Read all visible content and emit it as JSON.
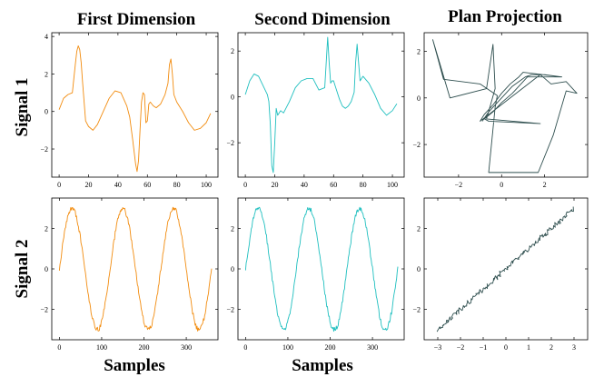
{
  "figure": {
    "column_titles": [
      "First Dimension",
      "Second Dimension",
      "Plan Projection"
    ],
    "row_titles": [
      "Signal 1",
      "Signal 2"
    ],
    "x_labels": [
      "Samples",
      "Samples",
      ""
    ]
  },
  "colors": {
    "first_dimension": "#f28c0f",
    "second_dimension": "#1fbfbf",
    "plan_projection": "#2f4f4f",
    "frame": "#000000"
  },
  "chart_data": [
    {
      "id": "signal1-first",
      "type": "line",
      "title": "First Dimension",
      "row": "Signal 1",
      "xlabel": "",
      "xlim": [
        -5,
        108
      ],
      "ylim": [
        -3.5,
        4.2
      ],
      "xticks": [
        0,
        20,
        40,
        60,
        80,
        100
      ],
      "yticks": [
        -2,
        0,
        2,
        4
      ],
      "color": "#f28c0f",
      "series": [
        {
          "x": [
            0,
            3,
            6,
            9,
            11,
            12,
            13,
            14,
            15,
            16,
            18,
            20,
            23,
            26,
            30,
            34,
            38,
            42,
            46,
            48,
            50,
            52,
            53,
            54,
            55,
            56,
            57,
            58,
            59,
            60,
            61,
            62,
            64,
            66,
            69,
            72,
            74,
            75,
            76,
            77,
            78,
            79,
            80,
            84,
            88,
            92,
            96,
            100,
            103
          ],
          "y": [
            0.1,
            0.7,
            0.9,
            1.0,
            2.5,
            3.2,
            3.5,
            3.3,
            2.6,
            1.5,
            -0.5,
            -0.8,
            -1.0,
            -0.7,
            0.0,
            0.7,
            1.1,
            1.0,
            0.3,
            -0.3,
            -1.5,
            -2.8,
            -3.2,
            -2.6,
            -1.0,
            0.5,
            1.0,
            0.9,
            -0.6,
            -0.5,
            0.4,
            0.5,
            0.3,
            0.2,
            0.4,
            0.9,
            1.5,
            2.5,
            2.8,
            2.0,
            0.9,
            0.7,
            0.5,
            0.0,
            -0.6,
            -1.0,
            -0.9,
            -0.6,
            -0.1
          ]
        }
      ]
    },
    {
      "id": "signal1-second",
      "type": "line",
      "title": "Second Dimension",
      "row": "Signal 1",
      "xlabel": "",
      "xlim": [
        -5,
        108
      ],
      "ylim": [
        -3.5,
        2.8
      ],
      "xticks": [
        0,
        20,
        40,
        60,
        80,
        100
      ],
      "yticks": [
        -2,
        0,
        2
      ],
      "color": "#1fbfbf",
      "series": [
        {
          "x": [
            0,
            3,
            6,
            9,
            12,
            15,
            16,
            17,
            18,
            19,
            20,
            21,
            22,
            24,
            26,
            30,
            34,
            38,
            42,
            46,
            50,
            54,
            55,
            56,
            57,
            58,
            59,
            60,
            62,
            64,
            66,
            68,
            70,
            72,
            74,
            75,
            76,
            77,
            78,
            80,
            84,
            88,
            92,
            96,
            100,
            103
          ],
          "y": [
            0.1,
            0.7,
            1.0,
            0.9,
            0.5,
            0.1,
            -0.2,
            -1.2,
            -3.0,
            -3.3,
            -2.0,
            -0.5,
            -0.8,
            -0.6,
            -0.7,
            -0.2,
            0.4,
            0.7,
            0.8,
            0.8,
            0.3,
            0.4,
            1.5,
            2.6,
            1.5,
            0.6,
            0.7,
            0.7,
            0.3,
            -0.1,
            -0.4,
            -0.5,
            -0.4,
            -0.2,
            0.2,
            1.5,
            2.3,
            1.5,
            0.7,
            0.9,
            0.6,
            0.1,
            -0.5,
            -0.8,
            -0.6,
            -0.3
          ]
        }
      ]
    },
    {
      "id": "signal1-plan",
      "type": "line",
      "title": "Plan Projection",
      "row": "Signal 1",
      "xlabel": "",
      "xlim": [
        -3.6,
        4.0
      ],
      "ylim": [
        -3.4,
        2.8
      ],
      "xticks": [
        -2,
        0,
        2
      ],
      "yticks": [
        -2,
        0,
        2
      ],
      "color": "#2f4f4f",
      "series": [
        {
          "x": [
            -0.9,
            -0.6,
            -0.2,
            0.2,
            0.5,
            0.8,
            1.1,
            1.4,
            2.0,
            2.8,
            1.2,
            0.9,
            0.5,
            0.0,
            -0.4,
            -0.8,
            -0.6,
            1.8,
            -0.7,
            -0.3,
            -0.4,
            -0.7,
            -2.4,
            -3.2,
            -2.7,
            -1.0,
            -0.2,
            -0.3,
            -0.6,
            1.7,
            2.4,
            3.0,
            3.5,
            3.0,
            2.3,
            1.8,
            -1.0,
            -0.8,
            -0.4,
            0.0,
            0.4,
            0.8,
            1.0,
            2.8
          ],
          "y": [
            -1.0,
            -0.6,
            -0.2,
            0.2,
            0.5,
            0.7,
            0.9,
            1.0,
            1.0,
            0.9,
            0.9,
            0.6,
            0.2,
            -0.2,
            -0.6,
            -0.9,
            -1.0,
            -1.1,
            -0.9,
            0.4,
            2.3,
            0.4,
            0.0,
            2.5,
            0.8,
            0.6,
            0.1,
            -0.4,
            -3.2,
            -3.2,
            -1.6,
            0.3,
            0.2,
            0.7,
            0.6,
            1.0,
            -1.0,
            -0.7,
            -0.3,
            0.2,
            0.6,
            0.9,
            1.1,
            0.9
          ]
        }
      ]
    },
    {
      "id": "signal2-first",
      "type": "line",
      "title": "First Dimension",
      "row": "Signal 2",
      "xlabel": "Samples",
      "xlim": [
        -18,
        375
      ],
      "ylim": [
        -3.5,
        3.5
      ],
      "xticks": [
        0,
        100,
        200,
        300
      ],
      "yticks": [
        -2,
        0,
        2
      ],
      "color": "#f28c0f",
      "series": [
        {
          "x_start": 0,
          "x_end": 360,
          "samples": 240,
          "period": 120,
          "amplitude": 3.0,
          "noise": 0.12
        }
      ]
    },
    {
      "id": "signal2-second",
      "type": "line",
      "title": "Second Dimension",
      "row": "Signal 2",
      "xlabel": "Samples",
      "xlim": [
        -18,
        375
      ],
      "ylim": [
        -3.5,
        3.5
      ],
      "xticks": [
        0,
        100,
        200,
        300
      ],
      "yticks": [
        -2,
        0,
        2
      ],
      "color": "#1fbfbf",
      "series": [
        {
          "x_start": 0,
          "x_end": 360,
          "samples": 240,
          "period": 120,
          "amplitude": 3.0,
          "noise": 0.12
        }
      ]
    },
    {
      "id": "signal2-plan",
      "type": "line",
      "title": "Plan Projection",
      "row": "Signal 2",
      "xlabel": "",
      "xlim": [
        -3.6,
        3.6
      ],
      "ylim": [
        -3.5,
        3.5
      ],
      "xticks": [
        -3,
        -2,
        -1,
        0,
        1,
        2,
        3
      ],
      "yticks": [
        -2,
        0,
        2
      ],
      "color": "#2f4f4f",
      "series": [
        {
          "x_start": -3.0,
          "x_end": 3.0,
          "samples": 160,
          "noise": 0.12
        }
      ]
    }
  ]
}
